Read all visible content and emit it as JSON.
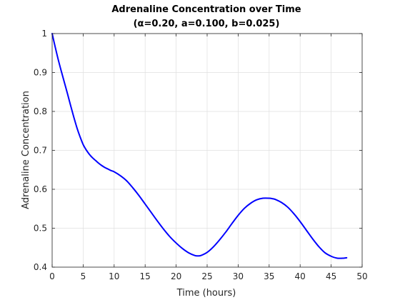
{
  "chart_data": {
    "type": "line",
    "title": "Adrenaline Concentration over Time",
    "subtitle": "(α=0.20, a=0.100, b=0.025)",
    "xlabel": "Time (hours)",
    "ylabel": "Adrenaline Concentration",
    "xlim": [
      0,
      50
    ],
    "ylim": [
      0.4,
      1
    ],
    "xticks": [
      0,
      5,
      10,
      15,
      20,
      25,
      30,
      35,
      40,
      45,
      50
    ],
    "yticks": [
      0.4,
      0.5,
      0.6,
      0.7,
      0.8,
      0.9,
      1
    ],
    "xtick_labels": [
      "0",
      "5",
      "10",
      "15",
      "20",
      "25",
      "30",
      "35",
      "40",
      "45",
      "50"
    ],
    "ytick_labels": [
      "0.4",
      "0.5",
      "0.6",
      "0.7",
      "0.8",
      "0.9",
      "1"
    ],
    "grid": true,
    "series": [
      {
        "color": "#0000ff",
        "x": [
          0,
          0.5,
          1,
          1.5,
          2,
          2.5,
          3,
          3.5,
          4,
          4.5,
          5,
          5.5,
          6,
          6.5,
          7,
          7.5,
          8,
          8.5,
          9,
          9.5,
          10,
          11,
          12,
          13,
          14,
          15,
          16,
          17,
          18,
          19,
          20,
          21,
          22,
          23,
          23.5,
          24,
          25,
          26,
          27,
          28,
          29,
          30,
          31,
          32,
          33,
          34,
          35,
          35.5,
          36,
          37,
          38,
          39,
          40,
          41,
          42,
          43,
          44,
          45,
          46,
          47,
          47.5
        ],
        "y": [
          1.0,
          0.965,
          0.932,
          0.902,
          0.873,
          0.844,
          0.814,
          0.785,
          0.758,
          0.735,
          0.715,
          0.701,
          0.69,
          0.681,
          0.674,
          0.667,
          0.661,
          0.656,
          0.652,
          0.648,
          0.645,
          0.635,
          0.622,
          0.604,
          0.584,
          0.562,
          0.54,
          0.518,
          0.497,
          0.478,
          0.462,
          0.448,
          0.437,
          0.43,
          0.429,
          0.43,
          0.438,
          0.452,
          0.47,
          0.49,
          0.512,
          0.533,
          0.551,
          0.564,
          0.573,
          0.577,
          0.577,
          0.576,
          0.574,
          0.566,
          0.554,
          0.537,
          0.517,
          0.495,
          0.473,
          0.453,
          0.437,
          0.428,
          0.423,
          0.423,
          0.424
        ]
      }
    ]
  }
}
